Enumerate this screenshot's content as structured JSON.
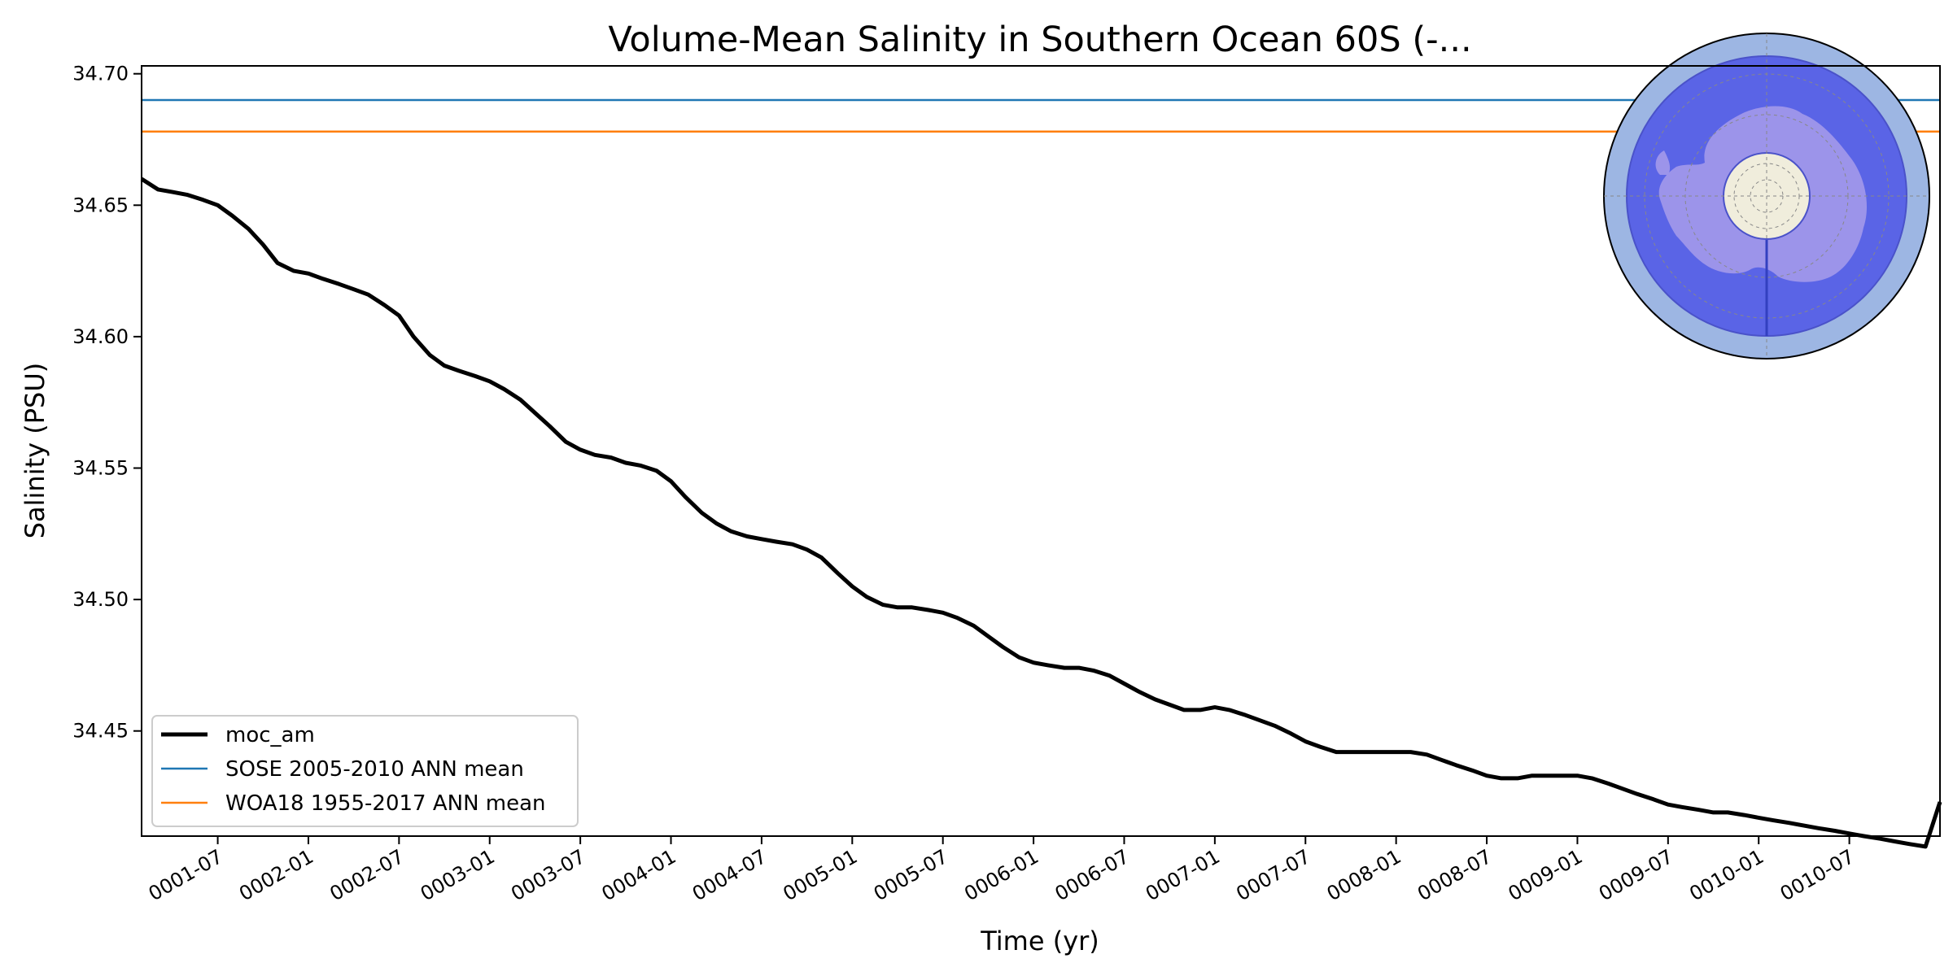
{
  "chart_data": {
    "type": "line",
    "title": "Volume-Mean Salinity in Southern Ocean 60S (-...",
    "xlabel": "Time (yr)",
    "ylabel": "Salinity (PSU)",
    "xlim": [
      0.08,
      10.0
    ],
    "ylim": [
      34.41,
      34.703
    ],
    "x_tick_positions": [
      0.5,
      1.0,
      1.5,
      2.0,
      2.5,
      3.0,
      3.5,
      4.0,
      4.5,
      5.0,
      5.5,
      6.0,
      6.5,
      7.0,
      7.5,
      8.0,
      8.5,
      9.0,
      9.5
    ],
    "x_tick_labels": [
      "0001-07",
      "0002-01",
      "0002-07",
      "0003-01",
      "0003-07",
      "0004-01",
      "0004-07",
      "0005-01",
      "0005-07",
      "0006-01",
      "0006-07",
      "0007-01",
      "0007-07",
      "0008-01",
      "0008-07",
      "0009-01",
      "0009-07",
      "0010-01",
      "0010-07"
    ],
    "y_ticks": [
      34.45,
      34.5,
      34.55,
      34.6,
      34.65,
      34.7
    ],
    "y_tick_labels": [
      "34.45",
      "34.50",
      "34.55",
      "34.60",
      "34.65",
      "34.70"
    ],
    "series": [
      {
        "name": "moc_am",
        "color": "#000000",
        "style": "thick",
        "x": [
          0.08,
          0.17,
          0.25,
          0.33,
          0.42,
          0.5,
          0.58,
          0.67,
          0.75,
          0.83,
          0.92,
          1.0,
          1.08,
          1.17,
          1.25,
          1.33,
          1.42,
          1.5,
          1.58,
          1.67,
          1.75,
          1.83,
          1.92,
          2.0,
          2.08,
          2.17,
          2.25,
          2.33,
          2.42,
          2.5,
          2.58,
          2.67,
          2.75,
          2.83,
          2.92,
          3.0,
          3.08,
          3.17,
          3.25,
          3.33,
          3.42,
          3.5,
          3.58,
          3.67,
          3.75,
          3.83,
          3.92,
          4.0,
          4.08,
          4.17,
          4.25,
          4.33,
          4.42,
          4.5,
          4.58,
          4.67,
          4.75,
          4.83,
          4.92,
          5.0,
          5.08,
          5.17,
          5.25,
          5.33,
          5.42,
          5.5,
          5.58,
          5.67,
          5.75,
          5.83,
          5.92,
          6.0,
          6.08,
          6.17,
          6.25,
          6.33,
          6.42,
          6.5,
          6.58,
          6.67,
          6.75,
          6.83,
          6.92,
          7.0,
          7.08,
          7.17,
          7.25,
          7.33,
          7.42,
          7.5,
          7.58,
          7.67,
          7.75,
          7.83,
          7.92,
          8.0,
          8.08,
          8.17,
          8.25,
          8.33,
          8.42,
          8.5,
          8.58,
          8.67,
          8.75,
          8.83,
          8.92,
          9.0,
          9.08,
          9.17,
          9.25,
          9.33,
          9.42,
          9.5,
          9.58,
          9.67,
          9.75,
          9.83,
          9.92,
          10.0
        ],
        "y": [
          34.66,
          34.656,
          34.655,
          34.654,
          34.652,
          34.65,
          34.646,
          34.641,
          34.635,
          34.628,
          34.625,
          34.624,
          34.622,
          34.62,
          34.618,
          34.616,
          34.612,
          34.608,
          34.6,
          34.593,
          34.589,
          34.587,
          34.585,
          34.583,
          34.58,
          34.576,
          34.571,
          34.566,
          34.56,
          34.557,
          34.555,
          34.554,
          34.552,
          34.551,
          34.549,
          34.545,
          34.539,
          34.533,
          34.529,
          34.526,
          34.524,
          34.523,
          34.522,
          34.521,
          34.519,
          34.516,
          34.51,
          34.505,
          34.501,
          34.498,
          34.497,
          34.497,
          34.496,
          34.495,
          34.493,
          34.49,
          34.486,
          34.482,
          34.478,
          34.476,
          34.475,
          34.474,
          34.474,
          34.473,
          34.471,
          34.468,
          34.465,
          34.462,
          34.46,
          34.458,
          34.458,
          34.459,
          34.458,
          34.456,
          34.454,
          34.452,
          34.449,
          34.446,
          34.444,
          34.442,
          34.442,
          34.442,
          34.442,
          34.442,
          34.442,
          34.441,
          34.439,
          34.437,
          34.435,
          34.433,
          34.432,
          34.432,
          34.433,
          34.433,
          34.433,
          34.433,
          34.432,
          34.43,
          34.428,
          34.426,
          34.424,
          34.422,
          34.421,
          34.42,
          34.419,
          34.419,
          34.418,
          34.417,
          34.416,
          34.415,
          34.414,
          34.413,
          34.412,
          34.411,
          34.41,
          34.409,
          34.408,
          34.407,
          34.406,
          34.423
        ]
      },
      {
        "name": "SOSE 2005-2010 ANN mean",
        "color": "#1f77b4",
        "style": "hline",
        "value": 34.69
      },
      {
        "name": "WOA18 1955-2017 ANN mean",
        "color": "#ff7f0e",
        "style": "hline",
        "value": 34.678
      }
    ],
    "legend": {
      "location": "lower-left",
      "entries": [
        "moc_am",
        "SOSE 2005-2010 ANN mean",
        "WOA18 1955-2017 ANN mean"
      ]
    },
    "inset": {
      "type": "polar-map",
      "location": "top-right",
      "description_colors": {
        "outer_ring": "#9db6e3",
        "region": "#5a64e6",
        "land": "#9c94ea",
        "pole": "#f0eddc"
      }
    }
  }
}
